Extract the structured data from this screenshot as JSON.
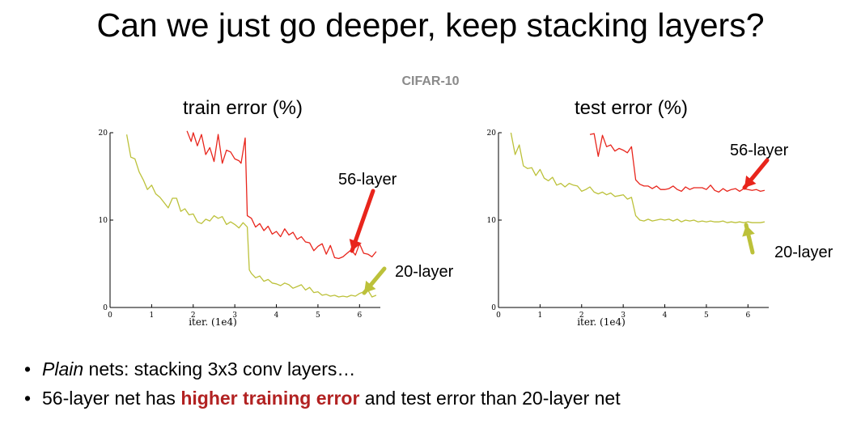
{
  "slide": {
    "title": "Can we just go deeper, keep stacking layers?",
    "dataset": "CIFAR-10"
  },
  "colors": {
    "red": "#e8251c",
    "olive": "#bcc13a"
  },
  "bullets": [
    {
      "parts": [
        {
          "text": "Plain",
          "style": "italic"
        },
        {
          "text": " nets: stacking 3x3 conv layers…",
          "style": "normal"
        }
      ]
    },
    {
      "parts": [
        {
          "text": "56-layer net has ",
          "style": "normal"
        },
        {
          "text": "higher training error",
          "style": "emph"
        },
        {
          "text": " and test error than 20-layer net",
          "style": "normal"
        }
      ]
    }
  ],
  "chart_data": [
    {
      "type": "line",
      "title": "train error (%)",
      "xlabel": "iter. (1e4)",
      "ylabel": "",
      "xlim": [
        0,
        6.5
      ],
      "ylim": [
        0,
        20
      ],
      "xticks": [
        0,
        1,
        2,
        3,
        4,
        5,
        6
      ],
      "yticks": [
        0,
        10,
        20
      ],
      "series": [
        {
          "name": "56-layer",
          "color": "#e8251c",
          "x": [
            1.85,
            1.95,
            2.0,
            2.1,
            2.2,
            2.3,
            2.4,
            2.5,
            2.6,
            2.7,
            2.8,
            2.9,
            3.0,
            3.1,
            3.15,
            3.25,
            3.3,
            3.4,
            3.5,
            3.6,
            3.7,
            3.8,
            3.9,
            4.0,
            4.1,
            4.2,
            4.3,
            4.4,
            4.5,
            4.6,
            4.7,
            4.8,
            4.9,
            5.0,
            5.1,
            5.2,
            5.3,
            5.4,
            5.5,
            5.6,
            5.7,
            5.8,
            5.9,
            6.0,
            6.1,
            6.2,
            6.3,
            6.4
          ],
          "y": [
            20.2,
            19.0,
            20.0,
            18.5,
            19.8,
            17.5,
            18.3,
            16.7,
            19.8,
            16.5,
            18.0,
            17.8,
            17.0,
            16.8,
            16.5,
            19.4,
            10.5,
            10.2,
            9.2,
            9.6,
            8.8,
            9.3,
            8.4,
            8.7,
            8.1,
            9.0,
            8.3,
            8.6,
            7.8,
            8.1,
            7.5,
            7.4,
            6.5,
            7.0,
            7.3,
            6.1,
            7.1,
            5.7,
            5.6,
            5.8,
            6.2,
            6.6,
            6.0,
            7.3,
            6.2,
            6.1,
            5.8,
            6.4
          ]
        },
        {
          "name": "20-layer",
          "color": "#bcc13a",
          "x": [
            0.4,
            0.5,
            0.6,
            0.7,
            0.8,
            0.9,
            1.0,
            1.1,
            1.2,
            1.3,
            1.4,
            1.5,
            1.6,
            1.7,
            1.8,
            1.9,
            2.0,
            2.1,
            2.2,
            2.3,
            2.4,
            2.5,
            2.6,
            2.7,
            2.8,
            2.9,
            3.0,
            3.1,
            3.2,
            3.3,
            3.35,
            3.4,
            3.5,
            3.6,
            3.7,
            3.8,
            3.9,
            4.0,
            4.1,
            4.2,
            4.3,
            4.4,
            4.5,
            4.6,
            4.7,
            4.8,
            4.9,
            5.0,
            5.1,
            5.2,
            5.3,
            5.4,
            5.5,
            5.6,
            5.7,
            5.8,
            5.9,
            6.0,
            6.1,
            6.2,
            6.3,
            6.4
          ],
          "y": [
            19.8,
            17.2,
            17.0,
            15.5,
            14.6,
            13.5,
            14.0,
            13.0,
            12.6,
            12.0,
            11.4,
            12.5,
            12.5,
            11.0,
            11.3,
            10.6,
            10.7,
            9.8,
            9.6,
            10.1,
            9.9,
            10.5,
            10.2,
            10.4,
            9.5,
            9.8,
            9.5,
            9.1,
            9.7,
            9.2,
            4.3,
            3.9,
            3.4,
            3.6,
            3.0,
            3.2,
            2.8,
            2.7,
            2.5,
            2.8,
            2.6,
            2.2,
            2.4,
            2.6,
            2.0,
            2.3,
            1.7,
            1.8,
            1.4,
            1.5,
            1.3,
            1.4,
            1.2,
            1.3,
            1.2,
            1.4,
            1.3,
            1.6,
            1.8,
            2.0,
            1.2,
            1.4
          ]
        }
      ],
      "annotations": [
        {
          "text": "56-layer",
          "x": 5.3,
          "y": 9.5,
          "color": "#e8251c"
        },
        {
          "text": "20-layer",
          "x": 6.5,
          "y": 3.2,
          "color": "#bcc13a"
        }
      ]
    },
    {
      "type": "line",
      "title": "test error (%)",
      "xlabel": "iter. (1e4)",
      "ylabel": "",
      "xlim": [
        0,
        6.5
      ],
      "ylim": [
        0,
        20
      ],
      "xticks": [
        0,
        1,
        2,
        3,
        4,
        5,
        6
      ],
      "yticks": [
        0,
        10,
        20
      ],
      "series": [
        {
          "name": "56-layer",
          "color": "#e8251c",
          "x": [
            2.2,
            2.3,
            2.4,
            2.5,
            2.6,
            2.7,
            2.8,
            2.9,
            3.0,
            3.1,
            3.2,
            3.3,
            3.4,
            3.5,
            3.6,
            3.7,
            3.8,
            3.9,
            4.0,
            4.1,
            4.2,
            4.3,
            4.4,
            4.5,
            4.6,
            4.7,
            4.8,
            4.9,
            5.0,
            5.1,
            5.2,
            5.3,
            5.4,
            5.5,
            5.6,
            5.7,
            5.8,
            5.9,
            6.0,
            6.1,
            6.2,
            6.3,
            6.4
          ],
          "y": [
            19.8,
            19.9,
            17.3,
            19.7,
            18.4,
            18.6,
            17.9,
            18.2,
            18.0,
            17.7,
            18.4,
            14.6,
            14.1,
            13.9,
            13.9,
            13.6,
            13.9,
            13.5,
            13.5,
            13.6,
            13.9,
            13.5,
            13.3,
            13.8,
            13.5,
            13.7,
            13.7,
            13.7,
            13.5,
            14.0,
            13.4,
            13.2,
            13.6,
            13.3,
            13.5,
            13.6,
            13.3,
            13.6,
            13.5,
            13.4,
            13.5,
            13.3,
            13.4
          ]
        },
        {
          "name": "20-layer",
          "color": "#bcc13a",
          "x": [
            0.3,
            0.4,
            0.5,
            0.6,
            0.7,
            0.8,
            0.9,
            1.0,
            1.1,
            1.2,
            1.3,
            1.4,
            1.5,
            1.6,
            1.7,
            1.8,
            1.9,
            2.0,
            2.1,
            2.2,
            2.3,
            2.4,
            2.5,
            2.6,
            2.7,
            2.8,
            2.9,
            3.0,
            3.1,
            3.2,
            3.3,
            3.4,
            3.5,
            3.6,
            3.7,
            3.8,
            3.9,
            4.0,
            4.1,
            4.2,
            4.3,
            4.4,
            4.5,
            4.6,
            4.7,
            4.8,
            4.9,
            5.0,
            5.1,
            5.2,
            5.3,
            5.4,
            5.5,
            5.6,
            5.7,
            5.8,
            5.9,
            6.0,
            6.1,
            6.2,
            6.3,
            6.4
          ],
          "y": [
            20.0,
            17.5,
            18.6,
            16.2,
            15.9,
            16.0,
            15.1,
            15.8,
            14.8,
            14.5,
            14.9,
            14.0,
            14.2,
            13.8,
            14.2,
            14.0,
            13.9,
            13.3,
            13.5,
            13.8,
            13.2,
            13.0,
            13.2,
            12.9,
            13.1,
            12.7,
            12.8,
            12.9,
            12.4,
            12.6,
            10.5,
            10.0,
            9.9,
            10.1,
            9.9,
            10.0,
            10.1,
            10.0,
            10.1,
            9.9,
            10.1,
            9.8,
            10.0,
            9.9,
            10.0,
            9.8,
            9.9,
            9.8,
            9.9,
            9.8,
            9.8,
            9.9,
            9.7,
            9.8,
            9.7,
            9.8,
            9.7,
            9.8,
            9.7,
            9.7,
            9.7,
            9.8
          ]
        }
      ],
      "annotations": [
        {
          "text": "56-layer",
          "x": 5.6,
          "y": 16.0,
          "color": "#e8251c"
        },
        {
          "text": "20-layer",
          "x": 5.9,
          "y": 5.4,
          "color": "#bcc13a"
        }
      ]
    }
  ]
}
